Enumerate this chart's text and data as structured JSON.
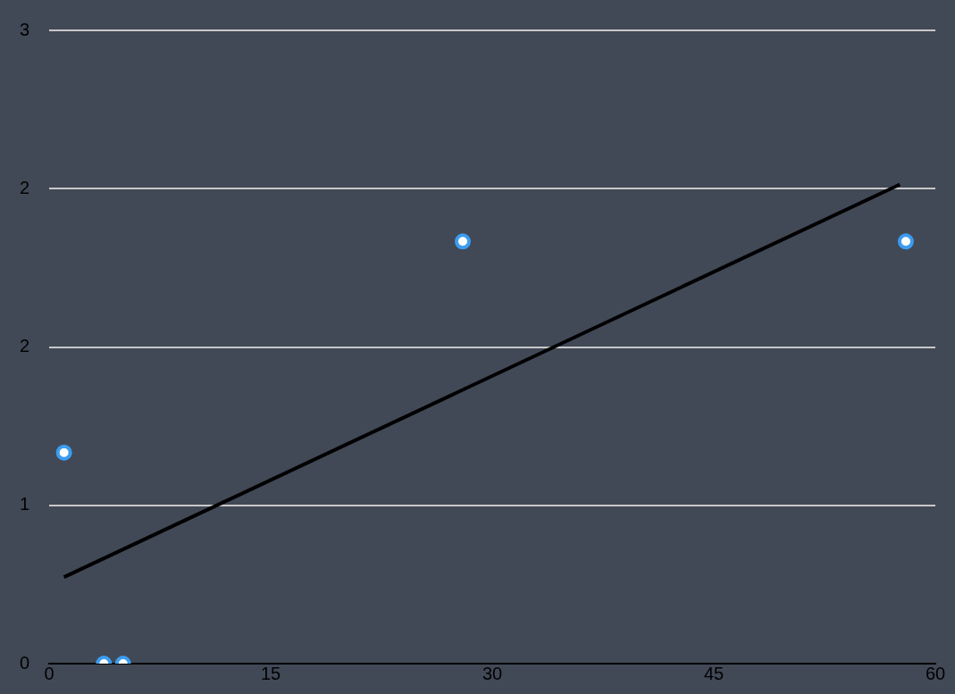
{
  "chart_data": {
    "type": "scatter",
    "xlim": [
      0,
      60
    ],
    "xticks": [
      0,
      15,
      30,
      45,
      60
    ],
    "ylim": [
      0,
      3
    ],
    "yticks": [
      0,
      {
        "value": 0.75,
        "label": "1"
      },
      {
        "value": 1.5,
        "label": "2"
      },
      {
        "value": 2.25,
        "label": "2"
      },
      3
    ],
    "grid": "y",
    "marker": "circle",
    "series": [
      {
        "color": "#3b9cf0",
        "x": [
          1,
          3.7,
          5,
          28,
          58
        ],
        "values": [
          1,
          0,
          0,
          2,
          2
        ]
      },
      {
        "type": "line",
        "color": "#000000",
        "x": [
          1,
          57.6
        ],
        "values": [
          0.41,
          2.27
        ],
        "marker": "none",
        "line_style": "solid"
      }
    ]
  }
}
